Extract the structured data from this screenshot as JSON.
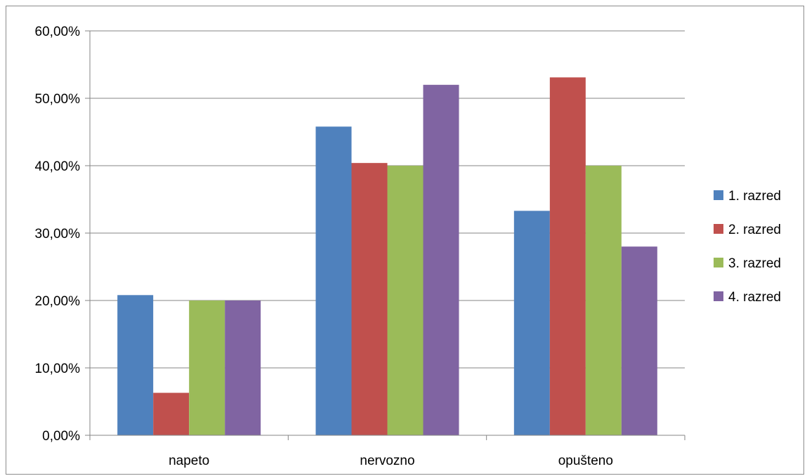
{
  "chart_data": {
    "type": "bar",
    "title": "",
    "xlabel": "",
    "ylabel": "",
    "categories": [
      "napeto",
      "nervozno",
      "opušteno"
    ],
    "series": [
      {
        "name": "1. razred",
        "color": "#4F81BD",
        "values": [
          20.8,
          45.8,
          33.3
        ]
      },
      {
        "name": "2. razred",
        "color": "#C0504D",
        "values": [
          6.3,
          40.4,
          53.1
        ]
      },
      {
        "name": "3. razred",
        "color": "#9BBB59",
        "values": [
          20.0,
          40.0,
          40.0
        ]
      },
      {
        "name": "4. razred",
        "color": "#8064A2",
        "values": [
          20.0,
          52.0,
          28.0
        ]
      }
    ],
    "ylim": [
      0,
      60
    ],
    "yticks": [
      0,
      10,
      20,
      30,
      40,
      50,
      60
    ],
    "ytick_labels": [
      "0,00%",
      "10,00%",
      "20,00%",
      "30,00%",
      "40,00%",
      "50,00%",
      "60,00%"
    ],
    "grid": true,
    "legend_position": "right"
  }
}
